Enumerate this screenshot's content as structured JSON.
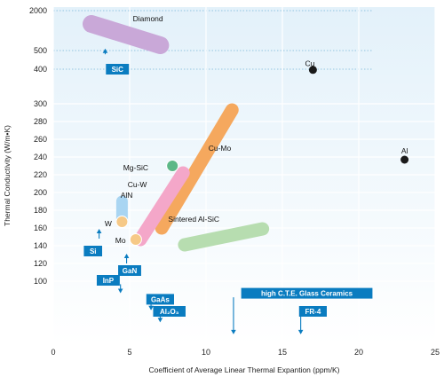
{
  "colors": {
    "background_top": "#e3f1fa",
    "background_bottom": "#ffffff",
    "gridline": "#ffffff",
    "dotted_guide": "#7ab7d8",
    "label_box": "#0a7cc0",
    "arrow": "#0a7cc0",
    "point": "#1a1a1a"
  },
  "chart_data": {
    "type": "scatter",
    "xlabel": "Coefficient of Average Linear Thermal Expantion (ppm/K)",
    "ylabel": "Thermal Conductivity (W/m•K)",
    "xlim": [
      0,
      25
    ],
    "x_ticks": [
      "0",
      "5",
      "10",
      "15",
      "20",
      "25"
    ],
    "y_scale": "non-uniform",
    "y_ticks": [
      "100",
      "120",
      "140",
      "160",
      "180",
      "200",
      "220",
      "240",
      "260",
      "280",
      "300",
      "400",
      "500",
      "2000"
    ],
    "grid": true,
    "points": [
      {
        "name": "Cu",
        "x": 17,
        "y": 398,
        "color": "#1a1a1a"
      },
      {
        "name": "Al",
        "x": 23,
        "y": 237,
        "color": "#1a1a1a"
      },
      {
        "name": "Mg-SiC",
        "x": 7.8,
        "y": 230,
        "color": "#5cb887"
      },
      {
        "name": "W",
        "x": 4.5,
        "y": 167,
        "color": "#f6c987"
      },
      {
        "name": "Mo",
        "x": 5.4,
        "y": 147,
        "color": "#f6c987"
      }
    ],
    "bands": [
      {
        "name": "Diamond",
        "x": [
          2.5,
          7
        ],
        "y": [
          1500,
          700
        ],
        "color": "#c9a8d8"
      },
      {
        "name": "Cu-Mo",
        "x": [
          7.1,
          11.7
        ],
        "y": [
          160,
          293
        ],
        "color": "#f5a85e"
      },
      {
        "name": "Cu-W",
        "x": [
          5.7,
          8.5
        ],
        "y": [
          147,
          222
        ],
        "color": "#f4a7c9"
      },
      {
        "name": "AlN",
        "x": [
          4.5,
          4.5
        ],
        "y": [
          170,
          190
        ],
        "color": "#a9d5f2"
      },
      {
        "name": "Sintered Al-SiC",
        "x": [
          8.6,
          13.7
        ],
        "y": [
          141,
          159
        ],
        "color": "#b7ddb0"
      }
    ],
    "labels": [
      {
        "text": "Diamond",
        "x": 6.2,
        "y": 1700
      },
      {
        "text": "Cu",
        "x": 16.8,
        "y": 430
      },
      {
        "text": "Al",
        "x": 23,
        "y": 247
      },
      {
        "text": "Cu-Mo",
        "x": 10.9,
        "y": 250
      },
      {
        "text": "Mg-SiC",
        "x": 5.4,
        "y": 228
      },
      {
        "text": "Cu-W",
        "x": 5.5,
        "y": 209
      },
      {
        "text": "AlN",
        "x": 4.8,
        "y": 197
      },
      {
        "text": "W",
        "x": 3.6,
        "y": 165
      },
      {
        "text": "Mo",
        "x": 4.4,
        "y": 146
      },
      {
        "text": "Sintered Al-SiC",
        "x": 9.2,
        "y": 170
      }
    ],
    "annotations": [
      {
        "text": "SiC",
        "x": 4.2,
        "y": 400,
        "arrow_x": 3.4,
        "arrow_dir": "up",
        "arrow_from": 480,
        "arrow_to": 540
      },
      {
        "text": "Si",
        "x": 2.6,
        "y": 134,
        "arrow_x": 3.0,
        "arrow_dir": "up",
        "arrow_from": 148,
        "arrow_to": 158
      },
      {
        "text": "GaN",
        "x": 5.0,
        "y": 112,
        "arrow_x": 4.8,
        "arrow_dir": "up",
        "arrow_from": 120,
        "arrow_to": 130
      },
      {
        "text": "InP",
        "x": 3.6,
        "y": 101,
        "arrow_x": 4.4,
        "arrow_dir": "down",
        "arrow_from": 97,
        "arrow_to": 89
      },
      {
        "text": "GaAs",
        "x": 7.0,
        "y": 82,
        "arrow_x": 6.4,
        "arrow_dir": "down",
        "arrow_from": 78,
        "arrow_to": 72
      },
      {
        "text": "Al₂O₃",
        "x": 7.6,
        "y": 70,
        "arrow_x": 7.0,
        "arrow_dir": "down",
        "arrow_from": 66,
        "arrow_to": 60
      },
      {
        "text": "high C.T.E. Glass Ceramics",
        "x": 16.6,
        "y": 88,
        "arrow_x": 11.8,
        "arrow_dir": "down",
        "arrow_from": 84,
        "arrow_to": 48
      },
      {
        "text": "FR-4",
        "x": 17.0,
        "y": 70,
        "arrow_x": 16.2,
        "arrow_dir": "down",
        "arrow_from": 66,
        "arrow_to": 48
      }
    ]
  }
}
